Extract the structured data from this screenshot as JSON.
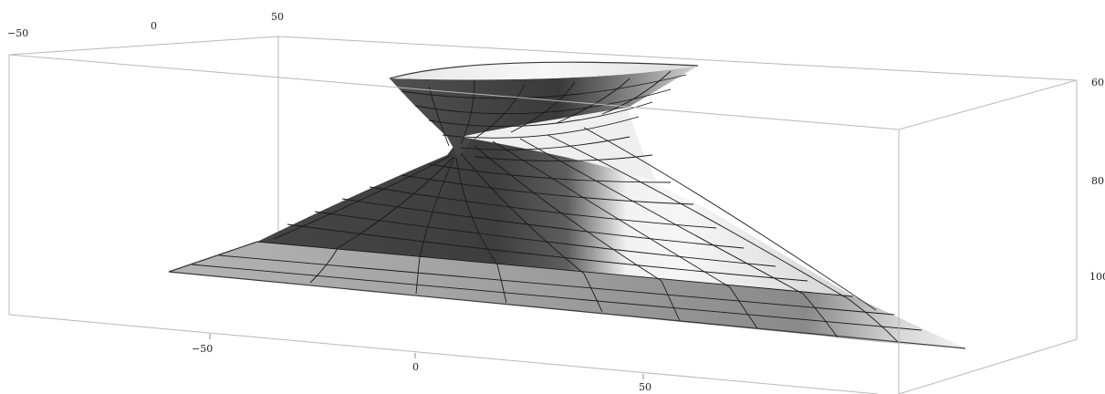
{
  "figure": {
    "type": "3d-surface",
    "surface_colors": {
      "dark": "#3c3c3c",
      "mid": "#8c8c8c",
      "light": "#f4f4f4",
      "mesh": "#1a1a1a",
      "box": "#b8b8b8"
    },
    "axes": {
      "back_axis_ticks": [
        "−50",
        "0",
        "50"
      ],
      "front_axis_ticks": [
        "−50",
        "0",
        "50"
      ],
      "right_axis_ticks": [
        "60",
        "80",
        "100"
      ]
    }
  }
}
